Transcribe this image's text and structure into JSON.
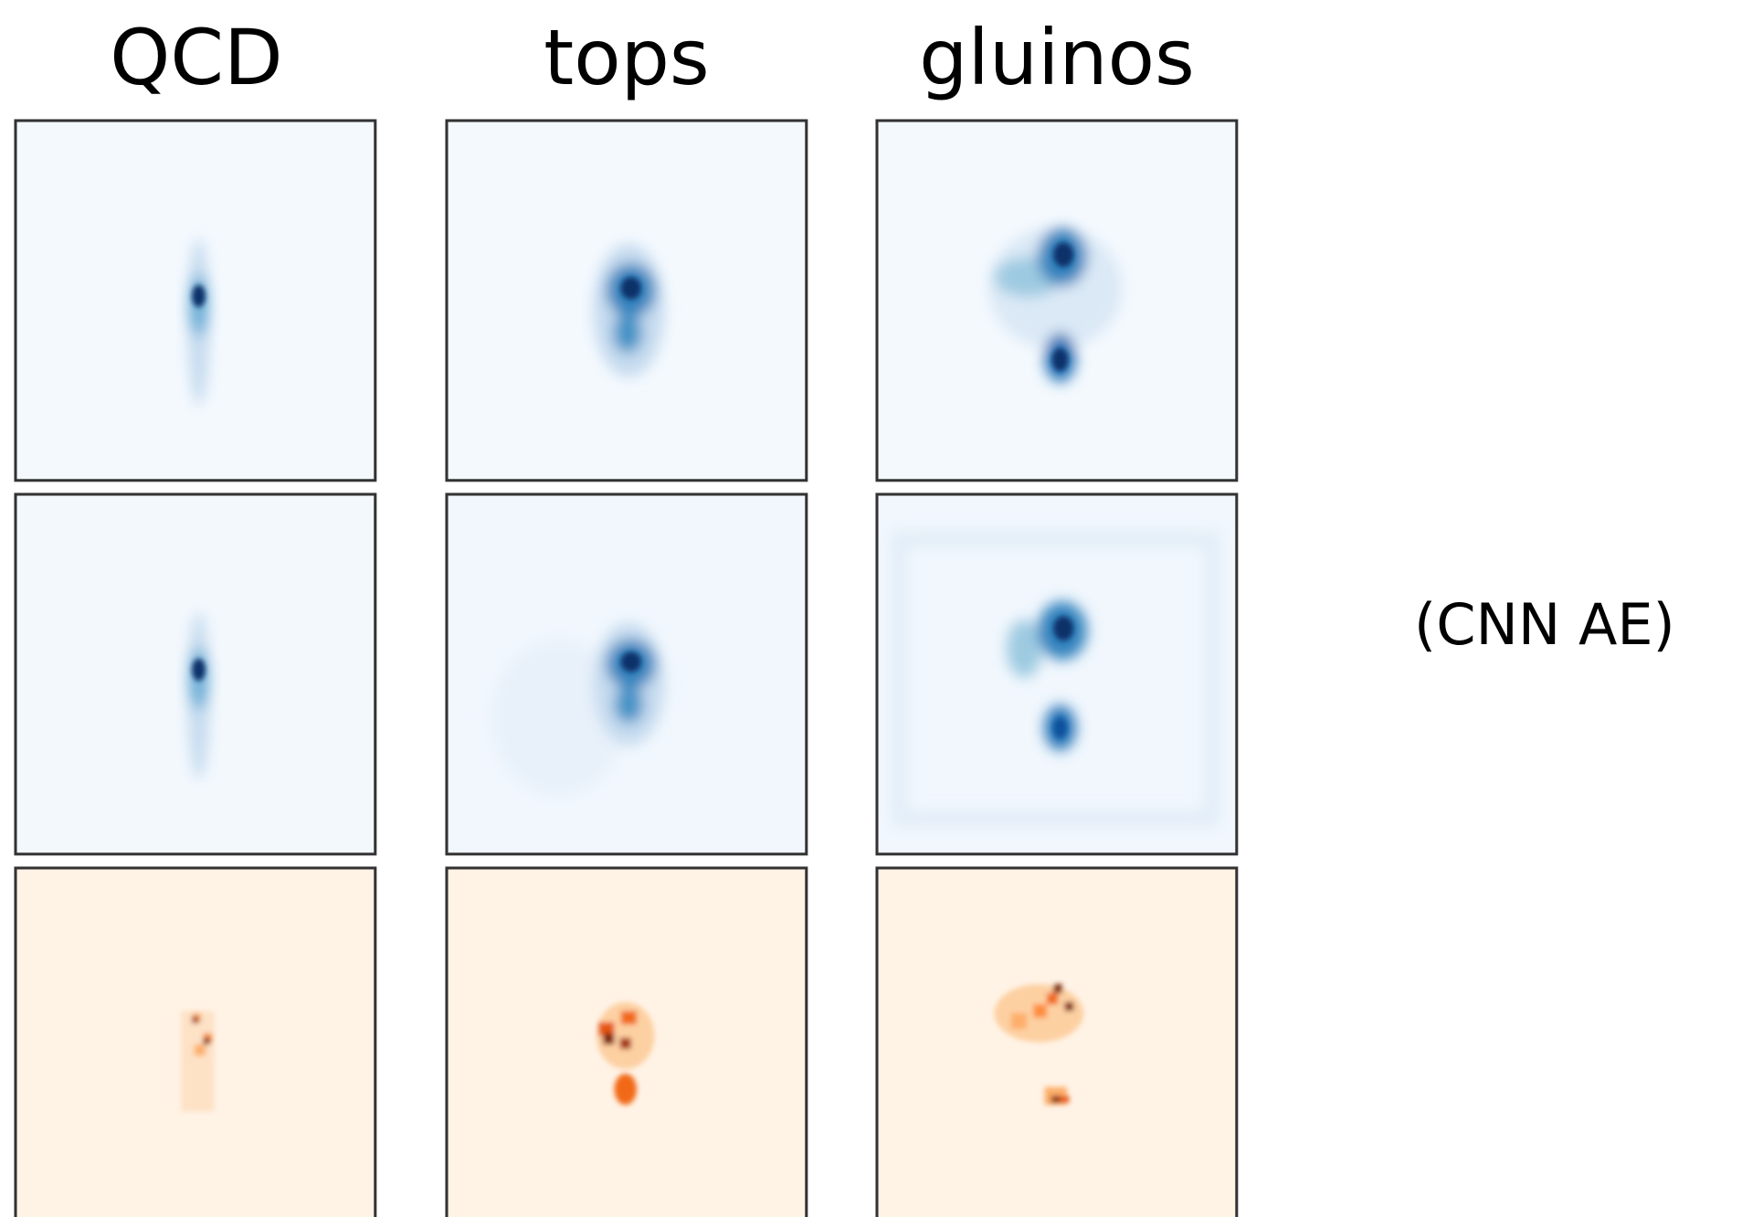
{
  "columns": [
    "QCD",
    "tops",
    "gluinos"
  ],
  "row_label": "(CNN AE)"
}
